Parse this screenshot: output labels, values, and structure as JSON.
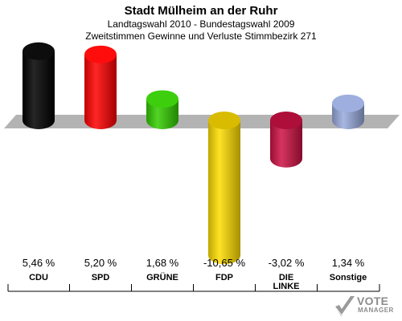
{
  "header": {
    "title": "Stadt Mülheim an der Ruhr",
    "subtitle": "Landtagswahl 2010 - Bundestagswahl 2009",
    "subtitle2": "Zweitstimmen Gewinne und Verluste Stimmbezirk 271"
  },
  "chart_data": {
    "type": "bar",
    "title": "Stadt Mülheim an der Ruhr",
    "subtitle": "Landtagswahl 2010 - Bundestagswahl 2009 / Zweitstimmen Gewinne und Verluste Stimmbezirk 271",
    "categories": [
      "CDU",
      "SPD",
      "GRÜNE",
      "FDP",
      "DIE LINKE",
      "Sonstige"
    ],
    "category_lines": [
      [
        "CDU"
      ],
      [
        "SPD"
      ],
      [
        "GRÜNE"
      ],
      [
        "FDP"
      ],
      [
        "DIE",
        "LINKE"
      ],
      [
        "Sonstige"
      ]
    ],
    "values": [
      5.46,
      5.2,
      1.68,
      -10.65,
      -3.02,
      1.34
    ],
    "value_labels": [
      "5,46 %",
      "5,20 %",
      "1,68 %",
      "-10,65 %",
      "-3,02 %",
      "1,34 %"
    ],
    "colors": [
      "#000000",
      "#ff0000",
      "#33cc00",
      "#ffdd00",
      "#cc1144",
      "#99aadd"
    ],
    "unit": "%",
    "baseline": 0,
    "grid": false,
    "legend": "none"
  },
  "logo": {
    "line1": "VOTE",
    "line2": "MANAGER"
  }
}
